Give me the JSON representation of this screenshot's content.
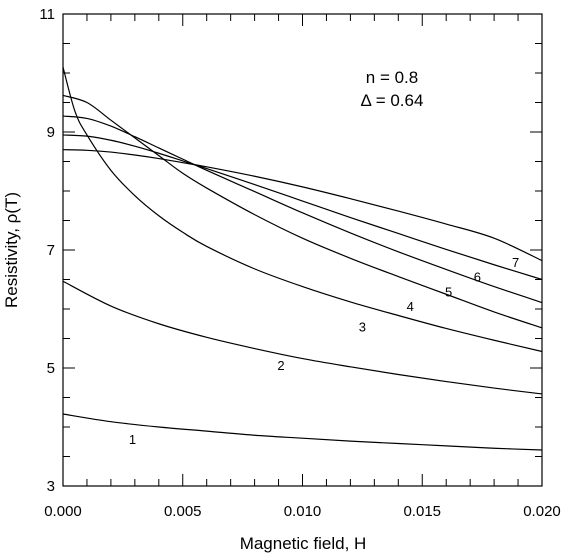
{
  "chart_data": {
    "type": "line",
    "title": "",
    "xlabel": "Magnetic field,  H",
    "ylabel": "Resistivity,  ρ(T)",
    "xlim": [
      0.0,
      0.02
    ],
    "ylim": [
      3,
      11
    ],
    "x_ticks": [
      0.0,
      0.005,
      0.01,
      0.015,
      0.02
    ],
    "x_tick_labels": [
      "0.000",
      "0.005",
      "0.010",
      "0.015",
      "0.020"
    ],
    "y_ticks": [
      3,
      5,
      7,
      9,
      11
    ],
    "y_tick_labels": [
      "3",
      "5",
      "7",
      "9",
      "11"
    ],
    "grid": false,
    "annotations": [
      "n = 0.8",
      "Δ = 0.64"
    ],
    "series": [
      {
        "name": "1",
        "x": [
          0.0,
          0.002,
          0.004,
          0.006,
          0.008,
          0.01,
          0.012,
          0.014,
          0.016,
          0.018,
          0.02
        ],
        "values": [
          4.22,
          4.09,
          4.0,
          3.93,
          3.86,
          3.81,
          3.76,
          3.72,
          3.68,
          3.64,
          3.61
        ]
      },
      {
        "name": "2",
        "x": [
          0.0,
          0.002,
          0.004,
          0.006,
          0.008,
          0.01,
          0.012,
          0.014,
          0.016,
          0.018,
          0.02
        ],
        "values": [
          6.47,
          6.05,
          5.75,
          5.52,
          5.33,
          5.16,
          5.02,
          4.89,
          4.77,
          4.66,
          4.56
        ]
      },
      {
        "name": "3",
        "x": [
          0.0,
          0.0005,
          0.001,
          0.002,
          0.003,
          0.004,
          0.005,
          0.006,
          0.008,
          0.01,
          0.012,
          0.014,
          0.016,
          0.018,
          0.02
        ],
        "values": [
          10.1,
          9.35,
          8.95,
          8.35,
          7.92,
          7.58,
          7.3,
          7.06,
          6.68,
          6.38,
          6.12,
          5.89,
          5.67,
          5.47,
          5.28
        ]
      },
      {
        "name": "4",
        "x": [
          0.0,
          0.001,
          0.002,
          0.003,
          0.004,
          0.005,
          0.006,
          0.008,
          0.01,
          0.012,
          0.014,
          0.016,
          0.018,
          0.02
        ],
        "values": [
          9.62,
          9.5,
          9.2,
          8.9,
          8.6,
          8.3,
          8.05,
          7.6,
          7.2,
          6.86,
          6.55,
          6.25,
          5.95,
          5.68
        ]
      },
      {
        "name": "5",
        "x": [
          0.0,
          0.001,
          0.002,
          0.003,
          0.004,
          0.005,
          0.006,
          0.008,
          0.01,
          0.012,
          0.014,
          0.016,
          0.018,
          0.02
        ],
        "values": [
          9.27,
          9.23,
          9.1,
          8.92,
          8.73,
          8.54,
          8.35,
          7.99,
          7.63,
          7.29,
          6.97,
          6.67,
          6.38,
          6.11
        ]
      },
      {
        "name": "6",
        "x": [
          0.0,
          0.001,
          0.002,
          0.003,
          0.004,
          0.005,
          0.006,
          0.008,
          0.01,
          0.012,
          0.014,
          0.016,
          0.018,
          0.02
        ],
        "values": [
          8.95,
          8.93,
          8.86,
          8.76,
          8.64,
          8.51,
          8.38,
          8.11,
          7.83,
          7.55,
          7.28,
          7.01,
          6.75,
          6.5
        ]
      },
      {
        "name": "7",
        "x": [
          0.0,
          0.001,
          0.002,
          0.003,
          0.004,
          0.005,
          0.006,
          0.008,
          0.01,
          0.012,
          0.014,
          0.016,
          0.018,
          0.02
        ],
        "values": [
          8.7,
          8.69,
          8.66,
          8.61,
          8.55,
          8.48,
          8.41,
          8.25,
          8.07,
          7.87,
          7.66,
          7.44,
          7.2,
          6.82
        ]
      }
    ],
    "curve_labels": [
      {
        "text": "1",
        "x": 0.0029,
        "y": 3.8
      },
      {
        "text": "2",
        "x": 0.0091,
        "y": 5.05
      },
      {
        "text": "3",
        "x": 0.0125,
        "y": 5.7
      },
      {
        "text": "4",
        "x": 0.0145,
        "y": 6.05
      },
      {
        "text": "5",
        "x": 0.0161,
        "y": 6.3
      },
      {
        "text": "6",
        "x": 0.0173,
        "y": 6.55
      },
      {
        "text": "7",
        "x": 0.0189,
        "y": 6.8
      }
    ]
  }
}
